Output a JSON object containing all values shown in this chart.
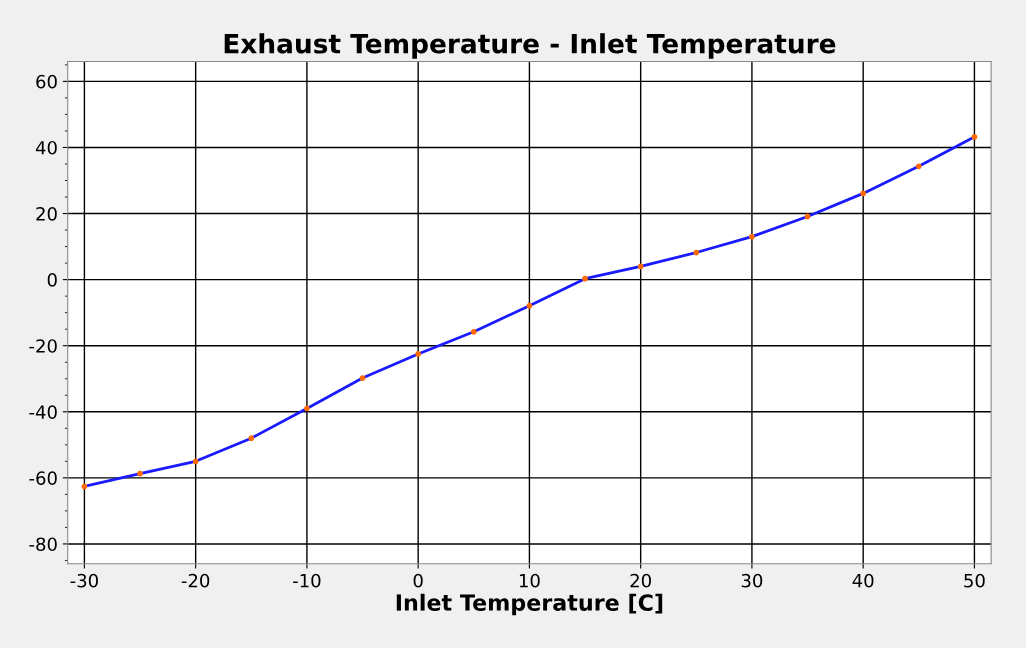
{
  "chart_data": {
    "type": "line",
    "title": "Exhaust Temperature - Inlet Temperature",
    "xlabel": "Inlet Temperature [C]",
    "x": [
      -30,
      -25,
      -20,
      -15,
      -10,
      -5,
      0,
      5,
      10,
      15,
      20,
      25,
      30,
      35,
      40,
      45,
      50
    ],
    "series": [
      {
        "color": "#1a1aff",
        "values": [
          -62.6,
          -58.7,
          -55,
          -48,
          -39,
          -29.8,
          -22.5,
          -15.8,
          -7.9,
          0.3,
          4,
          8.2,
          13,
          19.1,
          26.1,
          34.3,
          43.2
        ],
        "colors": [
          "#ff6a00",
          "#ff6a00",
          "#ff6a00",
          "#ff6a00",
          "#ff6a00",
          "#ff6a00",
          "#ff6a00",
          "#ff6a00",
          "#ff6a00",
          "#ff6a00",
          "#ff6a00",
          "#ff6a00",
          "#ff6a00",
          "#ff6a00",
          "#ff6a00",
          "#ff6a00",
          "#ff6a00"
        ]
      }
    ],
    "xlim": [
      -31.5,
      51.5
    ],
    "xticks": [
      -30,
      -20,
      -10,
      0,
      10,
      20,
      30,
      40,
      50
    ],
    "ylim": [
      -86,
      66
    ],
    "yticks": [
      -80,
      -60,
      -40,
      -20,
      0,
      20,
      40,
      60
    ],
    "grid": true,
    "marker": "circle",
    "line_style": "solid"
  }
}
